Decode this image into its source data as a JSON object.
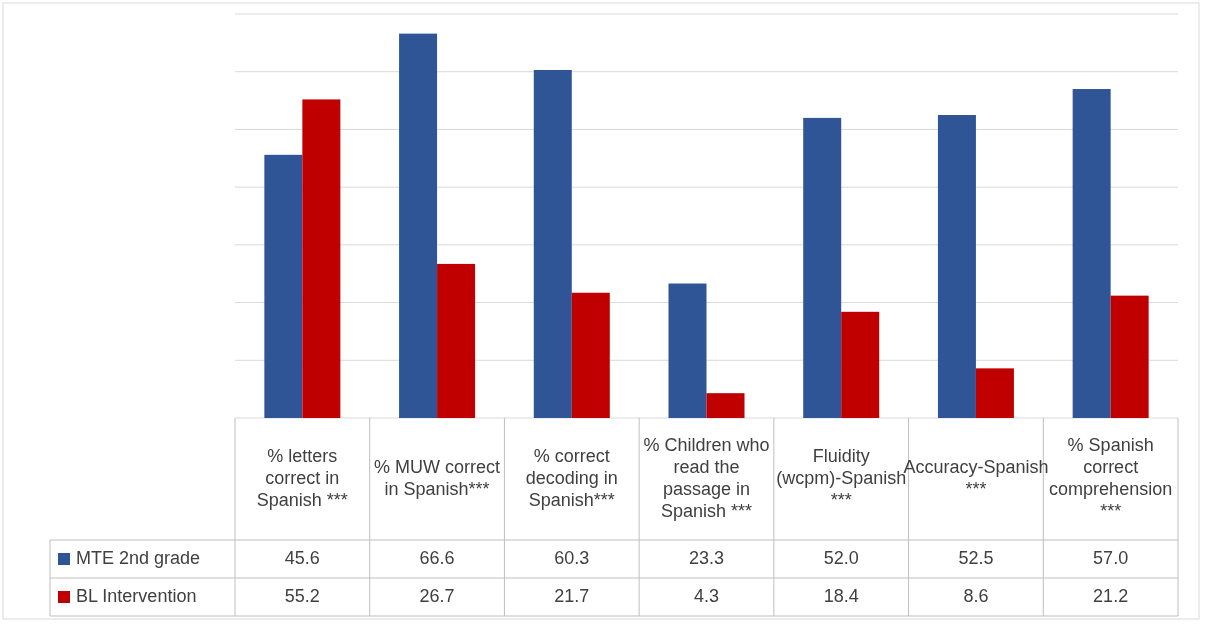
{
  "chart_data": {
    "type": "bar",
    "categories": [
      "% letters correct in Spanish ***",
      "% MUW correct in Spanish***",
      "% correct decoding in Spanish***",
      "% Children who read the passage in Spanish ***",
      "Fluidity (wcpm)-Spanish ***",
      "Accuracy-Spanish ***",
      "% Spanish correct comprehension ***"
    ],
    "series": [
      {
        "name": "MTE 2nd grade",
        "color": "#2f5597",
        "values": [
          45.6,
          66.6,
          60.3,
          23.3,
          52.0,
          52.5,
          57.0
        ],
        "value_labels": [
          "45.6",
          "66.6",
          "60.3",
          "23.3",
          "52.0",
          "52.5",
          "57.0"
        ]
      },
      {
        "name": "BL Intervention",
        "color": "#c00000",
        "values": [
          55.2,
          26.7,
          21.7,
          4.3,
          18.4,
          8.6,
          21.2
        ],
        "value_labels": [
          "55.2",
          "26.7",
          "21.7",
          "4.3",
          "18.4",
          "8.6",
          "21.2"
        ]
      }
    ],
    "ylim": [
      0,
      70
    ],
    "yticks": [
      {
        "value": 0,
        "label": null
      },
      {
        "value": 10,
        "label": null
      },
      {
        "value": 20,
        "label": null
      },
      {
        "value": 30,
        "label": null
      },
      {
        "value": 40,
        "label": null
      },
      {
        "value": 50,
        "label": null
      },
      {
        "value": 60,
        "label": null
      },
      {
        "value": 70,
        "label": null
      }
    ],
    "grid": "y",
    "legend": "bottom left",
    "tick_labels": "x"
  }
}
